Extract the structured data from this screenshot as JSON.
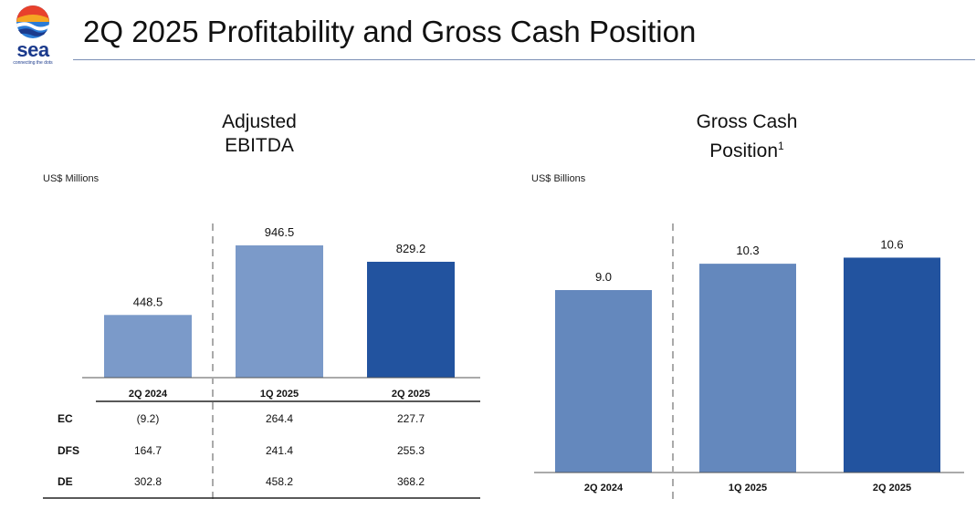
{
  "header": {
    "title": "2Q 2025 Profitability and Gross Cash Position",
    "logo_text": "sea",
    "logo_tagline": "connecting the dots"
  },
  "colors": {
    "light_blue": "#7b9ac9",
    "mid_blue": "#6488bd",
    "dark_blue": "#22539f",
    "rule": "#7a8fb5"
  },
  "chart_data": [
    {
      "type": "bar",
      "title_line1": "Adjusted",
      "title_line2": "EBITDA",
      "unit_label": "US$ Millions",
      "categories": [
        "2Q 2024",
        "1Q 2025",
        "2Q 2025"
      ],
      "values": [
        448.5,
        946.5,
        829.2
      ],
      "value_labels": [
        "448.5",
        "946.5",
        "829.2"
      ],
      "ylim": [
        0,
        1000
      ],
      "grid": false,
      "table": {
        "rows": [
          {
            "label": "EC",
            "values": [
              "(9.2)",
              "264.4",
              "227.7"
            ]
          },
          {
            "label": "DFS",
            "values": [
              "164.7",
              "241.4",
              "255.3"
            ]
          },
          {
            "label": "DE",
            "values": [
              "302.8",
              "458.2",
              "368.2"
            ]
          }
        ]
      }
    },
    {
      "type": "bar",
      "title_line1": "Gross Cash",
      "title_line2": "Position",
      "title_superscript": "1",
      "unit_label": "US$ Billions",
      "categories": [
        "2Q 2024",
        "1Q 2025",
        "2Q 2025"
      ],
      "values": [
        9.0,
        10.3,
        10.6
      ],
      "value_labels": [
        "9.0",
        "10.3",
        "10.6"
      ],
      "ylim": [
        0,
        11.5
      ],
      "grid": false
    }
  ]
}
